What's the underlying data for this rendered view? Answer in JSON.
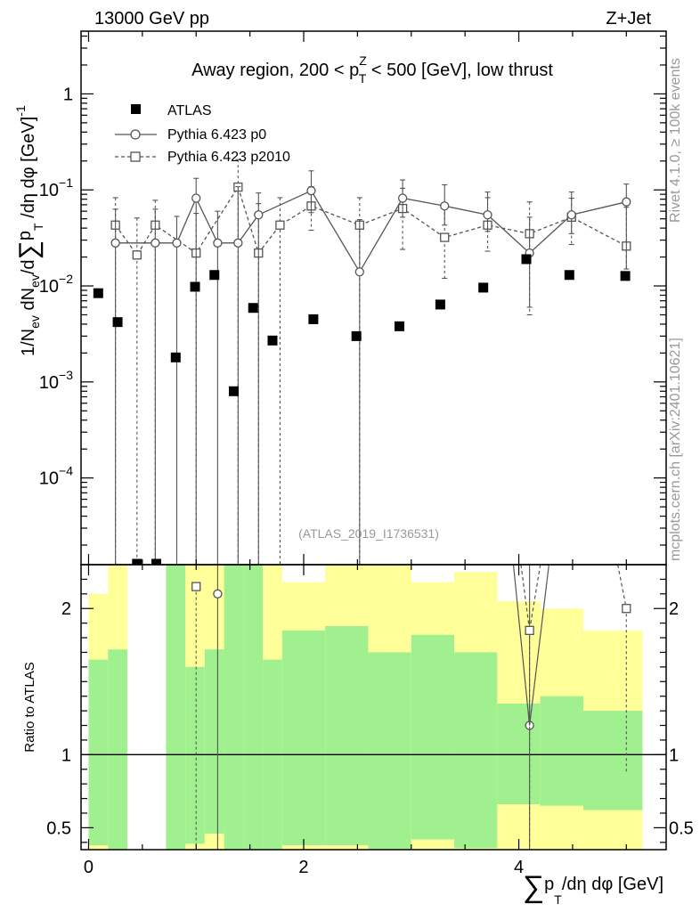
{
  "header": {
    "left": "13000 GeV pp",
    "right": "Z+Jet"
  },
  "side": {
    "rivet": "Rivet 4.1.0, ≥ 100k events",
    "mcplots": "mcplots.cern.ch [arXiv:2401.10621]"
  },
  "colors": {
    "band_green": "#a0f090",
    "band_yellow": "#ffff99",
    "data": "#000000",
    "mc": "#555555",
    "watermark": "#999999"
  },
  "chart_data": {
    "type": "scatter",
    "title": "Away region, 200 < p_T^Z < 500 [GeV], low thrust",
    "title_parts": {
      "a": "Away region, 200 < p",
      "sup": "Z",
      "sub": "T",
      "b": " < 500 [GeV], low thrust"
    },
    "analysis": "(ATLAS_2019_I1736531)",
    "xlabel": "∑p_T /dη dφ [GeV]",
    "xlabel_parts": {
      "sum": "∑",
      "p": "p",
      "sub": "T",
      "rest": "/dη dφ [GeV]"
    },
    "ylabel": "1/N_ev dN_ev/d∑p_T /dη dφ [GeV]^-1",
    "ylabel_parts": {
      "a": "1/N",
      "ev1": "ev",
      "b": " dN",
      "ev2": "ev",
      "c": "/d",
      "sum": "∑",
      "d": "p",
      "sub": "T",
      "e": " /dη dφ  [GeV]",
      "sup": "-1"
    },
    "ratio_ylabel": "Ratio to ATLAS",
    "xlim": [
      -0.07,
      5.37
    ],
    "ylim": [
      1.25e-05,
      4.5
    ],
    "ratio_ylim": [
      0.35,
      2.3
    ],
    "x_ticks": [
      "0",
      "2",
      "4"
    ],
    "x_tick_values": [
      0,
      2,
      4
    ],
    "y_ticks": [
      {
        "value": 1,
        "base": "1",
        "exp": ""
      },
      {
        "value": 0.1,
        "base": "10",
        "exp": "−1"
      },
      {
        "value": 0.01,
        "base": "10",
        "exp": "−2"
      },
      {
        "value": 0.001,
        "base": "10",
        "exp": "−3"
      },
      {
        "value": 0.0001,
        "base": "10",
        "exp": "−4"
      }
    ],
    "ratio_ticks": [
      {
        "value": 0.5,
        "label": "0.5"
      },
      {
        "value": 1,
        "label": "1"
      },
      {
        "value": 2,
        "label": "2"
      }
    ],
    "legend": [
      "ATLAS",
      "Pythia 6.423 p0",
      "Pythia 6.423 p2010"
    ],
    "legend_position": "top-left",
    "series": [
      {
        "name": "ATLAS",
        "style": "square-filled",
        "x": [
          0.09,
          0.27,
          0.45,
          0.63,
          0.81,
          0.99,
          1.17,
          1.35,
          1.53,
          1.71,
          2.09,
          2.49,
          2.89,
          3.27,
          3.67,
          4.07,
          4.47,
          4.99
        ],
        "y": [
          0.0084,
          0.0042,
          1.2e-05,
          1.2e-05,
          0.0018,
          0.0098,
          0.013,
          0.0008,
          0.0059,
          0.0027,
          0.0045,
          0.003,
          0.0038,
          0.0064,
          0.0096,
          0.019,
          0.013,
          0.0127
        ]
      },
      {
        "name": "Pythia 6.423 p0",
        "style": "circle-open-solid",
        "x": [
          0.25,
          0.62,
          0.82,
          1.0,
          1.2,
          1.39,
          1.58,
          2.07,
          2.52,
          2.92,
          3.31,
          3.71,
          4.1,
          4.49,
          5.0
        ],
        "y": [
          0.028,
          0.028,
          0.028,
          0.082,
          0.028,
          0.028,
          0.055,
          0.098,
          0.014,
          0.082,
          0.068,
          0.055,
          0.022,
          0.055,
          0.075
        ],
        "err_low": [
          0.028,
          0.028,
          0.028,
          0.082,
          0.028,
          0.028,
          0.055,
          0.04,
          0.014,
          0.03,
          0.025,
          0.018,
          0.016,
          0.02,
          0.06
        ],
        "err_high": [
          0.035,
          0.035,
          0.025,
          0.05,
          0.032,
          0.08,
          0.038,
          0.06,
          0.035,
          0.045,
          0.045,
          0.04,
          0.03,
          0.04,
          0.04
        ]
      },
      {
        "name": "Pythia 6.423 p2010",
        "style": "square-open-dashed",
        "x": [
          0.25,
          0.45,
          0.62,
          1.0,
          1.39,
          1.58,
          1.78,
          2.07,
          2.52,
          2.92,
          3.31,
          3.71,
          4.1,
          4.49,
          5.0
        ],
        "y": [
          0.043,
          0.021,
          0.043,
          0.022,
          0.107,
          0.022,
          0.043,
          0.068,
          0.043,
          0.064,
          0.032,
          0.043,
          0.035,
          0.052,
          0.026
        ],
        "err_low": [
          0.043,
          0.021,
          0.043,
          0.022,
          0.107,
          0.022,
          0.043,
          0.03,
          0.043,
          0.04,
          0.02,
          0.02,
          0.03,
          0.025,
          0.013
        ],
        "err_high": [
          0.04,
          0.03,
          0.035,
          0.035,
          0.1,
          0.05,
          0.04,
          0.04,
          0.04,
          0.04,
          0.035,
          0.04,
          0.04,
          0.03,
          0.04
        ]
      }
    ],
    "ratio": {
      "bins": [
        0.0,
        0.18,
        0.36,
        0.54,
        0.72,
        0.9,
        1.08,
        1.26,
        1.44,
        1.62,
        1.8,
        2.2,
        2.6,
        3.0,
        3.4,
        3.8,
        4.2,
        4.6,
        5.15
      ],
      "green": [
        [
          0.35,
          1.65
        ],
        [
          0.35,
          1.72
        ],
        null,
        null,
        [
          0.35,
          2.3
        ],
        [
          0.35,
          1.6
        ],
        [
          0.35,
          1.72
        ],
        [
          0.35,
          2.3
        ],
        [
          0.35,
          2.3
        ],
        [
          0.35,
          1.65
        ],
        [
          0.35,
          1.85
        ],
        [
          0.35,
          1.88
        ],
        [
          0.35,
          1.7
        ],
        [
          0.35,
          1.82
        ],
        [
          0.35,
          1.7
        ],
        [
          0.35,
          1.35
        ],
        [
          0.35,
          1.4
        ],
        [
          0.35,
          1.3
        ]
      ],
      "yellow": [
        [
          0.35,
          2.1
        ],
        [
          0.35,
          2.3
        ],
        null,
        null,
        [
          0.35,
          2.3
        ],
        [
          0.35,
          2.3
        ],
        [
          0.35,
          2.3
        ],
        [
          0.35,
          2.3
        ],
        [
          0.35,
          2.3
        ],
        [
          0.35,
          2.3
        ],
        [
          0.35,
          2.18
        ],
        [
          0.35,
          2.3
        ],
        [
          0.35,
          2.3
        ],
        [
          0.35,
          2.18
        ],
        [
          0.35,
          2.25
        ],
        [
          0.35,
          2.05
        ],
        [
          0.35,
          2.0
        ],
        [
          0.35,
          1.85
        ]
      ],
      "white_low": [
        0.38,
        null,
        null,
        null,
        null,
        0.39,
        0.46,
        null,
        null,
        null,
        0.38,
        0.38,
        null,
        0.42,
        0.36,
        0.66,
        0.65,
        0.62
      ],
      "p0": {
        "x": [
          1.2,
          4.1
        ],
        "y": [
          2.1,
          1.2
        ]
      },
      "p2010": {
        "x": [
          1.0,
          4.1,
          5.0
        ],
        "y": [
          2.15,
          1.85,
          2.0
        ]
      }
    }
  }
}
